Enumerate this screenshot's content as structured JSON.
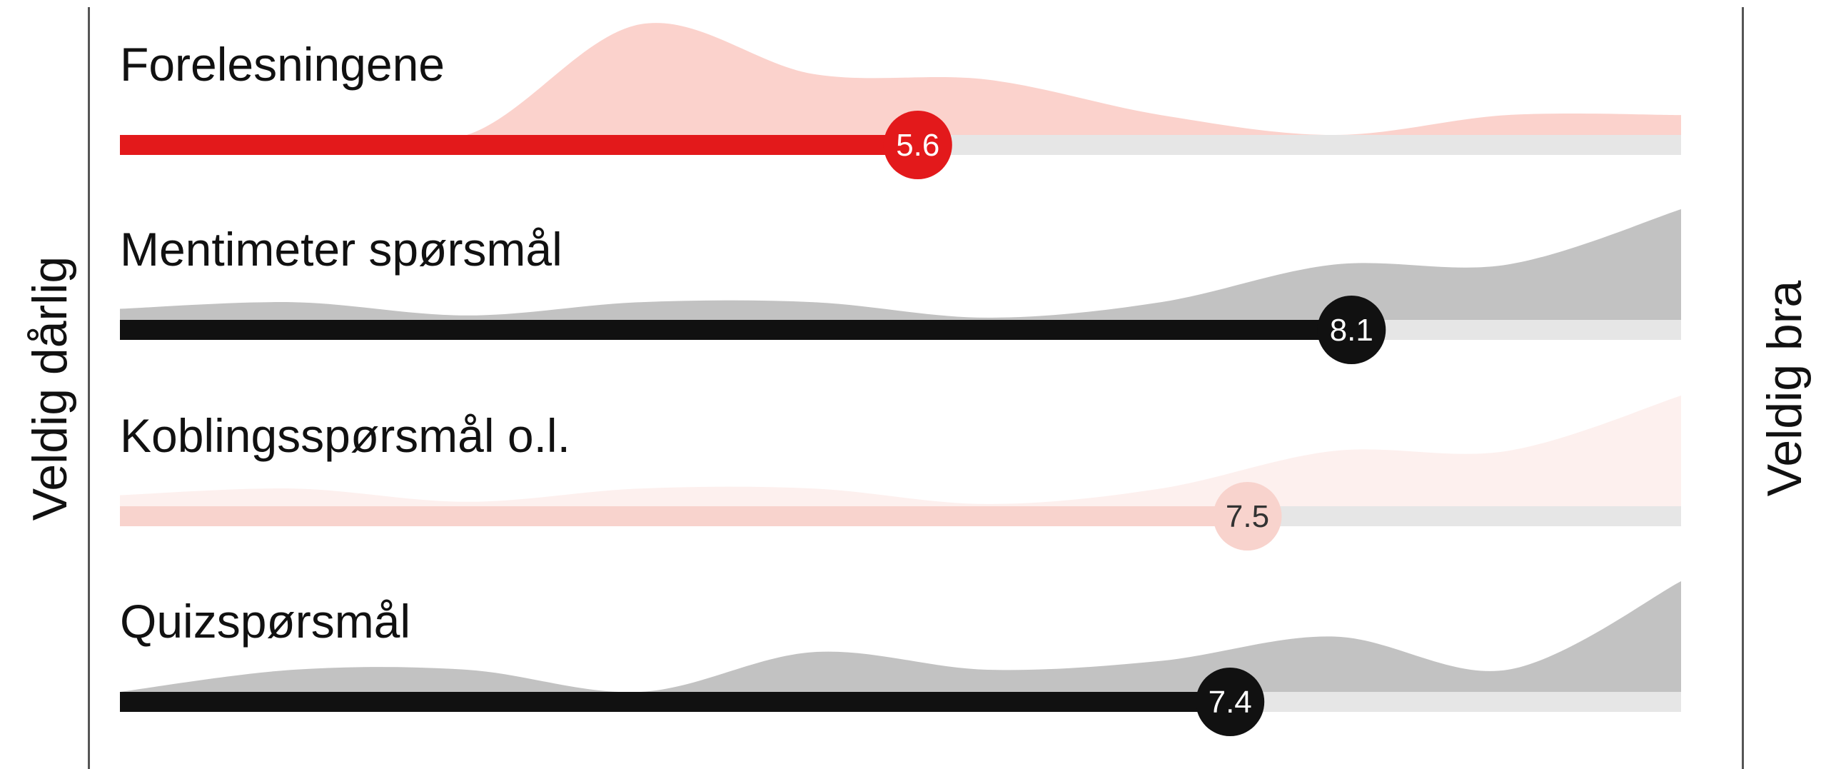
{
  "left_label": "Veldig dårlig",
  "right_label": "Veldig bra",
  "chart_data": [
    {
      "type": "area",
      "title": "Forelesningene",
      "value": 5.6,
      "value_label": "5.6",
      "xlim": [
        1,
        10
      ],
      "color": "#e3191b",
      "area_color": "#fbd2cc",
      "distribution": {
        "x": [
          1,
          2,
          3,
          4,
          5,
          6,
          7,
          8,
          9,
          10
        ],
        "density": [
          0,
          0,
          0,
          1.0,
          0.55,
          0.5,
          0.18,
          0,
          0.18,
          0.18
        ]
      }
    },
    {
      "type": "area",
      "title": "Mentimeter spørsmål",
      "value": 8.1,
      "value_label": "8.1",
      "xlim": [
        1,
        10
      ],
      "color": "#111111",
      "area_color": "#c2c2c2",
      "distribution": {
        "x": [
          1,
          2,
          3,
          4,
          5,
          6,
          7,
          8,
          9,
          10
        ],
        "density": [
          0.1,
          0.16,
          0.04,
          0.16,
          0.16,
          0.02,
          0.16,
          0.5,
          0.5,
          1.0
        ]
      }
    },
    {
      "type": "area",
      "title": "Koblingsspørsmål o.l.",
      "value": 7.5,
      "value_label": "7.5",
      "xlim": [
        1,
        10
      ],
      "color": "#f8d3cd",
      "area_color": "#fdf0ee",
      "distribution": {
        "x": [
          1,
          2,
          3,
          4,
          5,
          6,
          7,
          8,
          9,
          10
        ],
        "density": [
          0.1,
          0.16,
          0.04,
          0.16,
          0.16,
          0.02,
          0.16,
          0.5,
          0.5,
          1.0
        ]
      }
    },
    {
      "type": "area",
      "title": "Quizspørsmål",
      "value": 7.4,
      "value_label": "7.4",
      "xlim": [
        1,
        10
      ],
      "color": "#111111",
      "area_color": "#c2c2c2",
      "distribution": {
        "x": [
          1,
          2,
          3,
          4,
          5,
          6,
          7,
          8,
          9,
          10
        ],
        "density": [
          0,
          0.2,
          0.2,
          0,
          0.36,
          0.2,
          0.28,
          0.5,
          0.2,
          1.0
        ]
      }
    }
  ]
}
